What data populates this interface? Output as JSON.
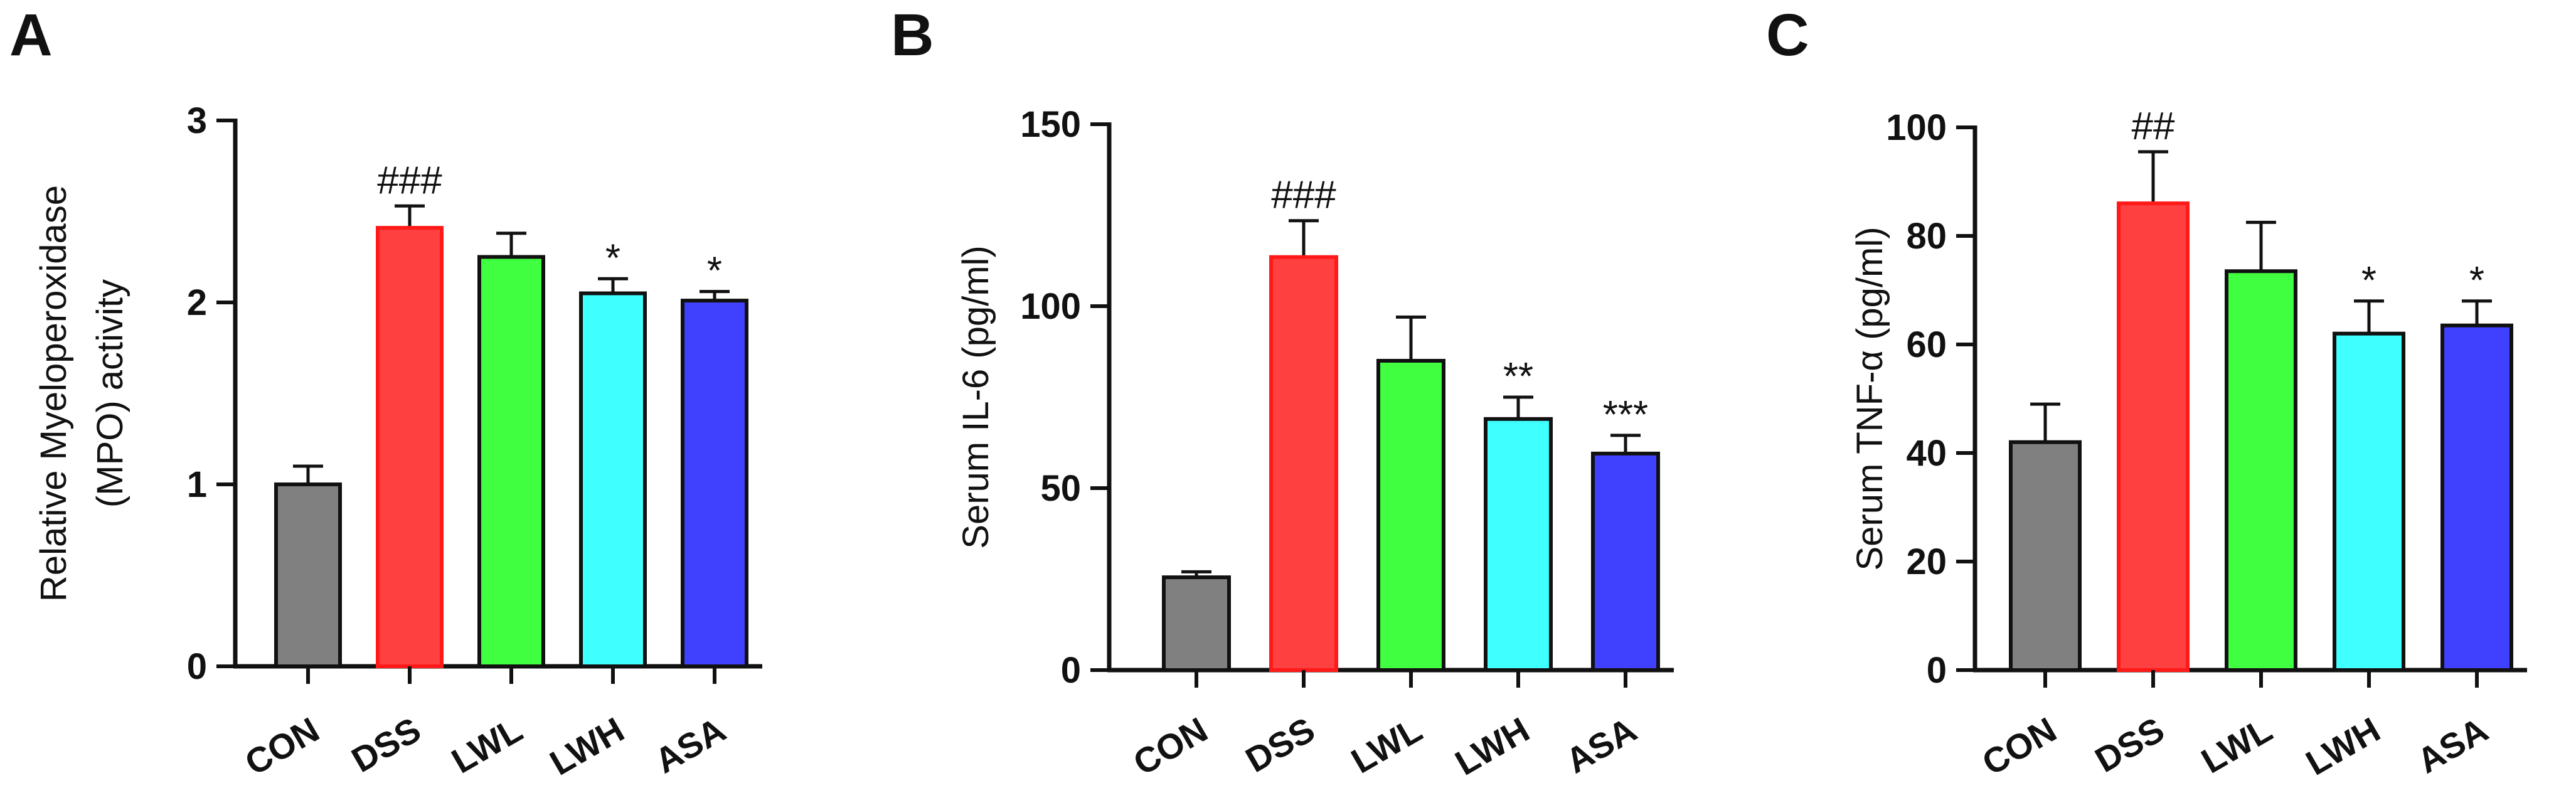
{
  "chart_data": [
    {
      "panel": "A",
      "type": "bar",
      "ylabel_lines": [
        "Relative Myeloperoxidase",
        "(MPO) activity"
      ],
      "categories": [
        "CON",
        "DSS",
        "LWL",
        "LWH",
        "ASA"
      ],
      "values": [
        1.0,
        2.41,
        2.25,
        2.05,
        2.01
      ],
      "errors": [
        0.1,
        0.12,
        0.13,
        0.08,
        0.05
      ],
      "significance": [
        "",
        "###",
        "",
        "*",
        "*"
      ],
      "ylim": [
        0,
        3
      ],
      "yticks": [
        0,
        1,
        2,
        3
      ],
      "ytick_labels": [
        "0",
        "1",
        "2",
        "3"
      ]
    },
    {
      "panel": "B",
      "type": "bar",
      "ylabel_lines": [
        "Serum IL-6 (pg/ml)"
      ],
      "categories": [
        "CON",
        "DSS",
        "LWL",
        "LWH",
        "ASA"
      ],
      "values": [
        25.5,
        113.5,
        85,
        69,
        59.5
      ],
      "errors": [
        1.5,
        10,
        12,
        6,
        5
      ],
      "significance": [
        "",
        "###",
        "",
        "**",
        "***"
      ],
      "ylim": [
        0,
        150
      ],
      "yticks": [
        0,
        50,
        100,
        150
      ],
      "ytick_labels": [
        "0",
        "50",
        "100",
        "150"
      ]
    },
    {
      "panel": "C",
      "type": "bar",
      "ylabel_lines": [
        "Serum TNF-α (pg/ml)"
      ],
      "categories": [
        "CON",
        "DSS",
        "LWL",
        "LWH",
        "ASA"
      ],
      "values": [
        42,
        86,
        73.5,
        62,
        63.5
      ],
      "errors": [
        7,
        9.5,
        9,
        6,
        4.5
      ],
      "significance": [
        "",
        "##",
        "",
        "*",
        "*"
      ],
      "ylim": [
        0,
        100
      ],
      "yticks": [
        0,
        20,
        40,
        60,
        80,
        100
      ],
      "ytick_labels": [
        "0",
        "20",
        "40",
        "60",
        "80",
        "100"
      ]
    }
  ],
  "colors": {
    "fills": [
      "#808080",
      "#ff4040",
      "#40ff40",
      "#40ffff",
      "#4040ff"
    ],
    "borders": [
      "#111111",
      "#ff1a1a",
      "#111111",
      "#111111",
      "#111111"
    ]
  }
}
